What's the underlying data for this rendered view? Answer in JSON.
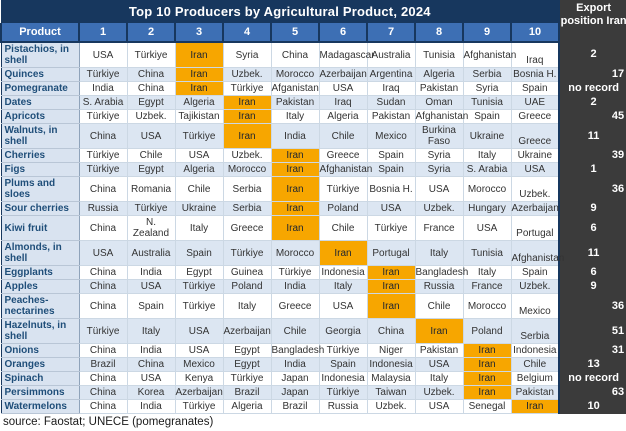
{
  "chart_data": {
    "type": "table",
    "title": "Top 10 Producers by Agricultural Product, 2024",
    "export_column_header": "Export position Iran",
    "highlight_country": "Iran",
    "columns": [
      "Product",
      "1",
      "2",
      "3",
      "4",
      "5",
      "6",
      "7",
      "8",
      "9",
      "10"
    ],
    "rows": [
      {
        "product": "Pistachios, in shell",
        "producers": [
          "USA",
          "Türkiye",
          "Iran",
          "Syria",
          "China",
          "Madagascar",
          "Australia",
          "Tunisia",
          "Afghanistan",
          "Iraq"
        ],
        "iran_producer_rank": 3,
        "iran_export_position": "2",
        "export_align": "center"
      },
      {
        "product": "Quinces",
        "producers": [
          "Türkiye",
          "China",
          "Iran",
          "Uzbek.",
          "Morocco",
          "Azerbaijan",
          "Argentina",
          "Algeria",
          "Serbia",
          "Bosnia H."
        ],
        "iran_producer_rank": 3,
        "iran_export_position": "17",
        "export_align": "right"
      },
      {
        "product": "Pomegranate",
        "producers": [
          "India",
          "China",
          "Iran",
          "Türkiye",
          "Afganistan",
          "USA",
          "Iraq",
          "Pakistan",
          "Syria",
          "Spain"
        ],
        "iran_producer_rank": 3,
        "iran_export_position": "no record",
        "export_align": "center"
      },
      {
        "product": "Dates",
        "producers": [
          "S. Arabia",
          "Egypt",
          "Algeria",
          "Iran",
          "Pakistan",
          "Iraq",
          "Sudan",
          "Oman",
          "Tunisia",
          "UAE"
        ],
        "iran_producer_rank": 4,
        "iran_export_position": "2",
        "export_align": "center"
      },
      {
        "product": "Apricots",
        "producers": [
          "Türkiye",
          "Uzbek.",
          "Tajikistan",
          "Iran",
          "Italy",
          "Algeria",
          "Pakistan",
          "Afghanistan",
          "Spain",
          "Greece"
        ],
        "iran_producer_rank": 4,
        "iran_export_position": "45",
        "export_align": "right"
      },
      {
        "product": "Walnuts, in shell",
        "producers": [
          "China",
          "USA",
          "Türkiye",
          "Iran",
          "India",
          "Chile",
          "Mexico",
          "Burkina Faso",
          "Ukraine",
          "Greece"
        ],
        "iran_producer_rank": 4,
        "iran_export_position": "11",
        "export_align": "center"
      },
      {
        "product": "Cherries",
        "producers": [
          "Türkiye",
          "Chile",
          "USA",
          "Uzbek.",
          "Iran",
          "Greece",
          "Spain",
          "Syria",
          "Italy",
          "Ukraine"
        ],
        "iran_producer_rank": 5,
        "iran_export_position": "39",
        "export_align": "right"
      },
      {
        "product": "Figs",
        "producers": [
          "Türkiye",
          "Egypt",
          "Algeria",
          "Morocco",
          "Iran",
          "Afghanistan",
          "Spain",
          "Syria",
          "S. Arabia",
          "USA"
        ],
        "iran_producer_rank": 5,
        "iran_export_position": "1",
        "export_align": "center"
      },
      {
        "product": "Plums and sloes",
        "producers": [
          "China",
          "Romania",
          "Chile",
          "Serbia",
          "Iran",
          "Türkiye",
          "Bosnia H.",
          "USA",
          "Morocco",
          "Uzbek."
        ],
        "iran_producer_rank": 5,
        "iran_export_position": "36",
        "export_align": "right"
      },
      {
        "product": "Sour cherries",
        "producers": [
          "Russia",
          "Türkiye",
          "Ukraine",
          "Serbia",
          "Iran",
          "Poland",
          "USA",
          "Uzbek.",
          "Hungary",
          "Azerbaijan"
        ],
        "iran_producer_rank": 5,
        "iran_export_position": "9",
        "export_align": "center"
      },
      {
        "product": "Kiwi fruit",
        "producers": [
          "China",
          "N. Zealand",
          "Italy",
          "Greece",
          "Iran",
          "Chile",
          "Türkiye",
          "France",
          "USA",
          "Portugal"
        ],
        "iran_producer_rank": 5,
        "iran_export_position": "6",
        "export_align": "center"
      },
      {
        "product": "Almonds, in shell",
        "producers": [
          "USA",
          "Australia",
          "Spain",
          "Türkiye",
          "Morocco",
          "Iran",
          "Portugal",
          "Italy",
          "Tunisia",
          "Afghanistan"
        ],
        "iran_producer_rank": 6,
        "iran_export_position": "11",
        "export_align": "center"
      },
      {
        "product": "Eggplants",
        "producers": [
          "China",
          "India",
          "Egypt",
          "Guinea",
          "Türkiye",
          "Indonesia",
          "Iran",
          "Bangladesh",
          "Italy",
          "Spain"
        ],
        "iran_producer_rank": 7,
        "iran_export_position": "6",
        "export_align": "center"
      },
      {
        "product": "Apples",
        "producers": [
          "China",
          "USA",
          "Türkiye",
          "Poland",
          "India",
          "Italy",
          "Iran",
          "Russia",
          "France",
          "Uzbek."
        ],
        "iran_producer_rank": 7,
        "iran_export_position": "9",
        "export_align": "center"
      },
      {
        "product": "Peaches-nectarines",
        "producers": [
          "China",
          "Spain",
          "Türkiye",
          "Italy",
          "Greece",
          "USA",
          "Iran",
          "Chile",
          "Morocco",
          "Mexico"
        ],
        "iran_producer_rank": 7,
        "iran_export_position": "36",
        "export_align": "right"
      },
      {
        "product": "Hazelnuts, in shell",
        "producers": [
          "Türkiye",
          "Italy",
          "USA",
          "Azerbaijan",
          "Chile",
          "Georgia",
          "China",
          "Iran",
          "Poland",
          "Serbia"
        ],
        "iran_producer_rank": 8,
        "iran_export_position": "51",
        "export_align": "right"
      },
      {
        "product": "Onions",
        "producers": [
          "China",
          "India",
          "USA",
          "Egypt",
          "Bangladesh",
          "Türkiye",
          "Niger",
          "Pakistan",
          "Iran",
          "Indonesia"
        ],
        "iran_producer_rank": 9,
        "iran_export_position": "31",
        "export_align": "right"
      },
      {
        "product": "Oranges",
        "producers": [
          "Brazil",
          "China",
          "Mexico",
          "Egypt",
          "India",
          "Spain",
          "Indonesia",
          "USA",
          "Iran",
          "Chile"
        ],
        "iran_producer_rank": 9,
        "iran_export_position": "13",
        "export_align": "center"
      },
      {
        "product": "Spinach",
        "producers": [
          "China",
          "USA",
          "Kenya",
          "Türkiye",
          "Japan",
          "Indonesia",
          "Malaysia",
          "Italy",
          "Iran",
          "Belgium"
        ],
        "iran_producer_rank": 9,
        "iran_export_position": "no record",
        "export_align": "center"
      },
      {
        "product": "Persimmons",
        "producers": [
          "China",
          "Korea",
          "Azerbaijan",
          "Brazil",
          "Japan",
          "Türkiye",
          "Taiwan",
          "Uzbek.",
          "Iran",
          "Pakistan"
        ],
        "iran_producer_rank": 9,
        "iran_export_position": "63",
        "export_align": "right"
      },
      {
        "product": "Watermelons",
        "producers": [
          "China",
          "India",
          "Türkiye",
          "Algeria",
          "Brazil",
          "Russia",
          "Uzbek.",
          "USA",
          "Senegal",
          "Iran"
        ],
        "iran_producer_rank": 10,
        "iran_export_position": "10",
        "export_align": "center"
      }
    ],
    "source": "source: Faostat; UNECE (pomegranates)",
    "colors": {
      "title_bg": "#17375E",
      "header_bg": "#3D6FB4",
      "row_alt_bg": "#DCE6F2",
      "product_col_bg": "#D9E3F0",
      "iran_highlight": "#F7A600",
      "export_col_bg": "#3B3B3B"
    },
    "layout": {
      "grid": true,
      "export_column_position": "right"
    }
  }
}
